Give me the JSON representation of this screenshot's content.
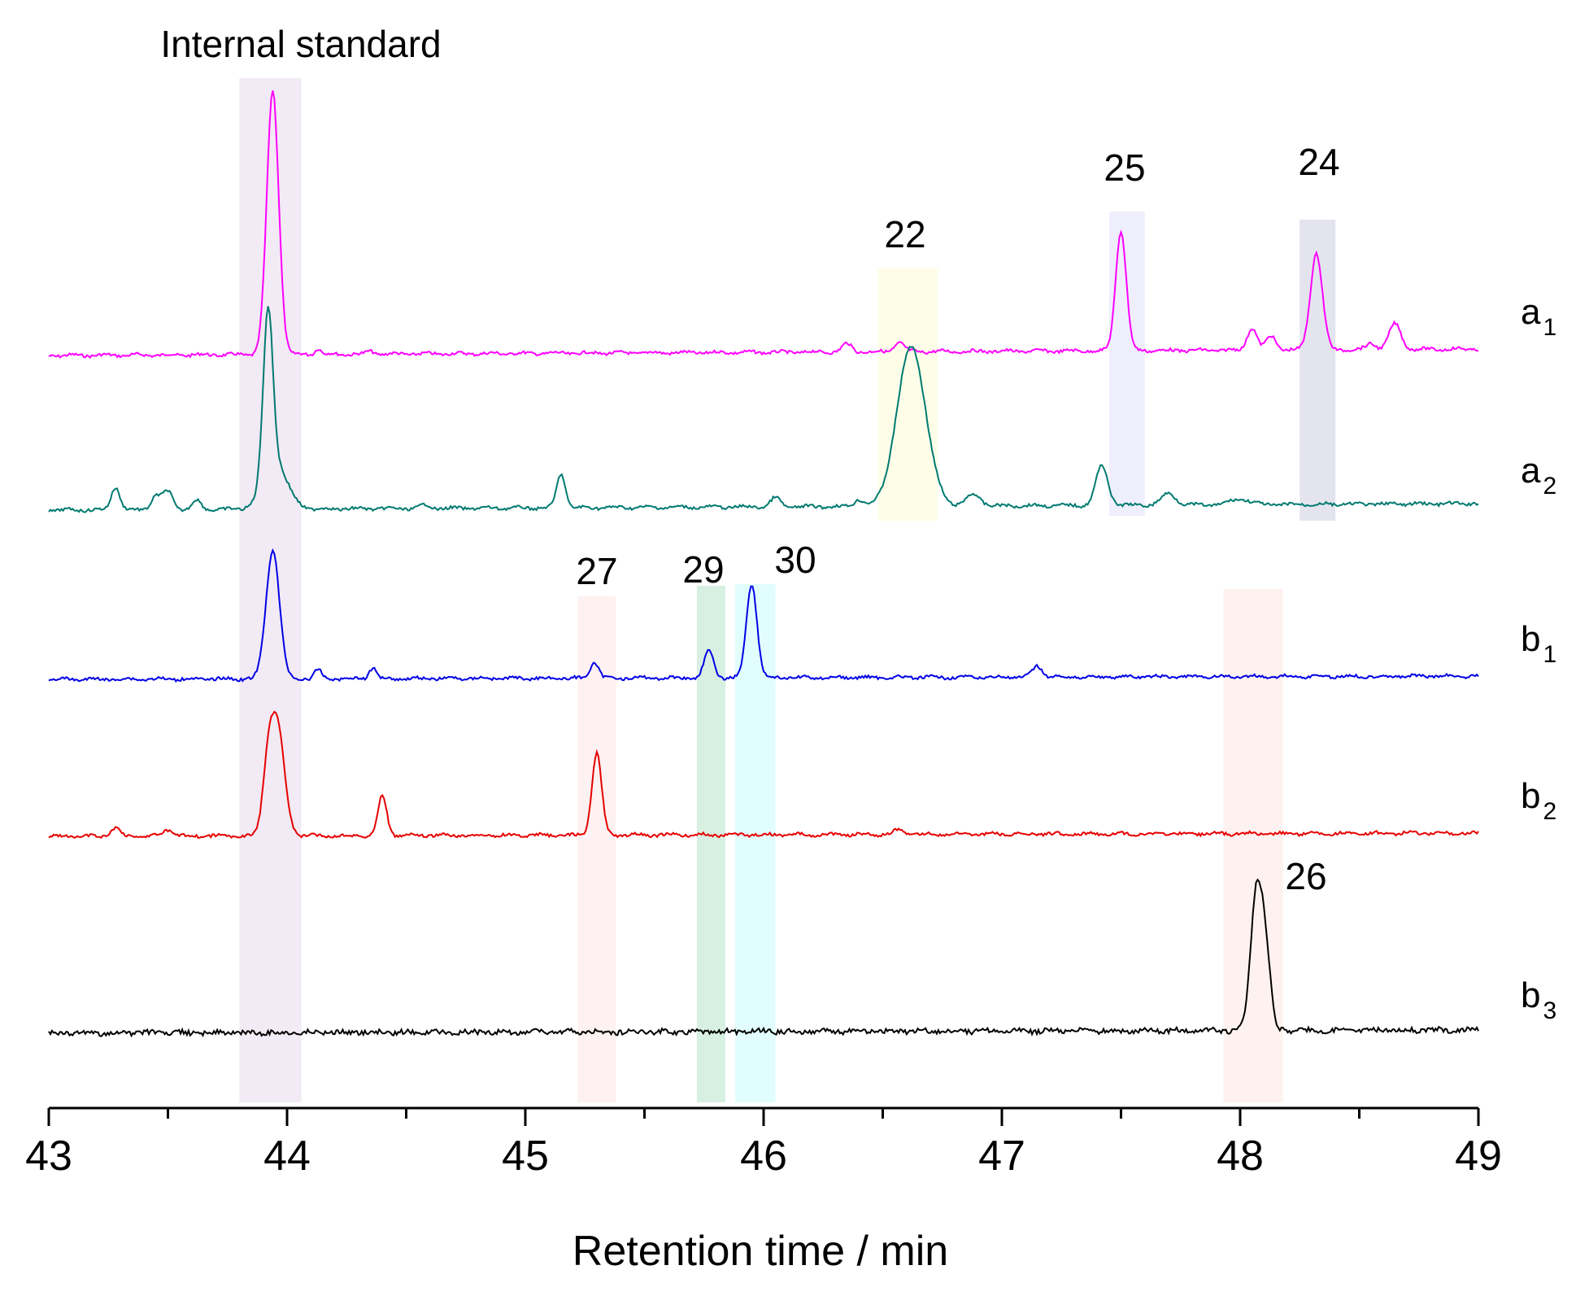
{
  "chart_data": {
    "type": "line",
    "title": "",
    "xlabel": "Retention time / min",
    "ylabel": "",
    "xlim": [
      43,
      49
    ],
    "xticks": [
      "43",
      "44",
      "45",
      "46",
      "47",
      "48",
      "49"
    ],
    "minor_tick_step": 0.5,
    "series": [
      {
        "name": "a",
        "sub": "1",
        "color": "#ff00ff",
        "baseline": 0.0,
        "peaks": [
          [
            43.94,
            0.025,
            260
          ],
          [
            44.13,
            0.012,
            6
          ],
          [
            44.35,
            0.015,
            3
          ],
          [
            46.35,
            0.02,
            8
          ],
          [
            46.57,
            0.02,
            9
          ],
          [
            47.5,
            0.022,
            118
          ],
          [
            48.05,
            0.02,
            22
          ],
          [
            48.13,
            0.02,
            14
          ],
          [
            48.32,
            0.025,
            95
          ],
          [
            48.55,
            0.02,
            6
          ],
          [
            48.65,
            0.025,
            25
          ]
        ]
      },
      {
        "name": "a",
        "sub": "2",
        "color": "#007a70",
        "baseline": 0.0,
        "peaks": [
          [
            43.28,
            0.018,
            20
          ],
          [
            43.45,
            0.02,
            12
          ],
          [
            43.5,
            0.02,
            16
          ],
          [
            43.62,
            0.018,
            8
          ],
          [
            43.92,
            0.02,
            145
          ],
          [
            43.95,
            0.05,
            40
          ],
          [
            44.58,
            0.02,
            3
          ],
          [
            45.15,
            0.018,
            30
          ],
          [
            46.05,
            0.02,
            8
          ],
          [
            46.4,
            0.02,
            6
          ],
          [
            46.62,
            0.06,
            140
          ],
          [
            46.88,
            0.03,
            10
          ],
          [
            47.42,
            0.025,
            35
          ],
          [
            47.7,
            0.03,
            10
          ],
          [
            48.0,
            0.04,
            5
          ]
        ]
      },
      {
        "name": "b",
        "sub": "1",
        "color": "#0000e6",
        "baseline": 0.0,
        "peaks": [
          [
            43.94,
            0.028,
            118
          ],
          [
            44.13,
            0.015,
            8
          ],
          [
            44.36,
            0.015,
            10
          ],
          [
            45.29,
            0.018,
            14
          ],
          [
            45.77,
            0.02,
            24
          ],
          [
            45.95,
            0.022,
            86
          ],
          [
            47.15,
            0.02,
            10
          ]
        ]
      },
      {
        "name": "b",
        "sub": "2",
        "color": "#e60000",
        "baseline": 0.0,
        "peaks": [
          [
            43.28,
            0.018,
            8
          ],
          [
            43.5,
            0.02,
            6
          ],
          [
            43.92,
            0.022,
            55
          ],
          [
            43.96,
            0.03,
            100
          ],
          [
            44.4,
            0.018,
            38
          ],
          [
            45.3,
            0.02,
            78
          ],
          [
            46.57,
            0.02,
            5
          ]
        ]
      },
      {
        "name": "b",
        "sub": "3",
        "color": "#000000",
        "baseline": 0.0,
        "peaks": [
          [
            48.07,
            0.025,
            140
          ],
          [
            48.11,
            0.02,
            60
          ]
        ]
      }
    ],
    "highlight_bands": [
      {
        "label": "Internal standard",
        "x0": 43.8,
        "x1": 44.06,
        "color": "#f2eaf4"
      },
      {
        "label": "22",
        "x0": 46.48,
        "x1": 46.73,
        "color": "#fdfde8"
      },
      {
        "label": "25",
        "x0": 47.45,
        "x1": 47.6,
        "color": "#eeeefd"
      },
      {
        "label": "24",
        "x0": 48.25,
        "x1": 48.4,
        "color": "#e4e4ef"
      },
      {
        "label": "27",
        "x0": 45.22,
        "x1": 45.38,
        "color": "#fdf1f1"
      },
      {
        "label": "29",
        "x0": 45.72,
        "x1": 45.84,
        "color": "#d8f0e2"
      },
      {
        "label": "30",
        "x0": 45.88,
        "x1": 46.05,
        "color": "#e2fdfd"
      },
      {
        "label": "26",
        "x0": 47.93,
        "x1": 48.18,
        "color": "#fdf2ef"
      }
    ],
    "peak_labels": [
      "Internal standard",
      "22",
      "25",
      "24",
      "27",
      "29",
      "30",
      "26"
    ]
  }
}
